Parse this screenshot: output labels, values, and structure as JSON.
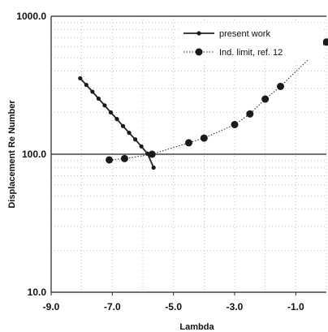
{
  "chart_data": {
    "type": "line",
    "xlabel": "Lambda",
    "ylabel": "Displacement Re Number",
    "xlim": [
      -9.0,
      0.0
    ],
    "ylim": [
      10.0,
      1000.0
    ],
    "yscale": "log",
    "x_ticks": [
      "-9.0",
      "-7.0",
      "-5.0",
      "-3.0",
      "-1.0"
    ],
    "y_ticks": [
      "10.0",
      "100.0",
      "1000.0"
    ],
    "grid": "dotted",
    "legend": "top-right",
    "series": [
      {
        "name": "present work",
        "marker": "small-circle",
        "line": "solid",
        "x": [
          -8.05,
          -7.85,
          -7.65,
          -7.45,
          -7.25,
          -7.05,
          -6.85,
          -6.65,
          -6.45,
          -6.25,
          -6.05,
          -5.85,
          -5.65
        ],
        "y": [
          355,
          318,
          284,
          253,
          226,
          201,
          180,
          160,
          143,
          128,
          114,
          101,
          80
        ]
      },
      {
        "name": "Ind. limit, ref.  12",
        "marker": "large-circle",
        "line": "dotted",
        "x": [
          -7.1,
          -6.6,
          -5.7,
          -4.5,
          -4.0,
          -3.0,
          -2.5,
          -2.0,
          -1.5,
          0.0
        ],
        "y": [
          91,
          93,
          100,
          121,
          131,
          164,
          196,
          251,
          310,
          650
        ]
      }
    ],
    "reference_line": {
      "y": 100.0
    }
  }
}
